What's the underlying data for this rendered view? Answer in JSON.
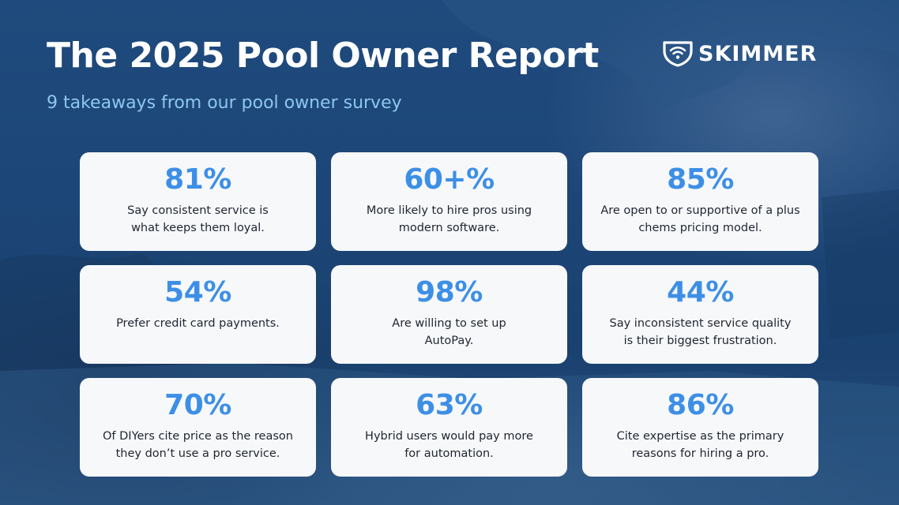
{
  "header": {
    "title": "The 2025 Pool Owner Report",
    "subtitle": "9 takeaways from our pool owner survey"
  },
  "logo": {
    "text": "SKIMMER",
    "icon": "skimmer-wifi-shield-icon"
  },
  "colors": {
    "background": "#1c4677",
    "subtitle": "#8ec7ee",
    "stat": "#3d8fe6",
    "card": "#f7f8fa",
    "card_text": "#1f2530"
  },
  "cards": [
    {
      "stat": "81%",
      "lines": [
        "Say consistent service is",
        "what keeps them loyal."
      ]
    },
    {
      "stat": "60+%",
      "lines": [
        "More likely to hire pros using",
        "modern software."
      ]
    },
    {
      "stat": "85%",
      "lines": [
        "Are open to or supportive of a plus",
        "chems pricing model."
      ]
    },
    {
      "stat": "54%",
      "lines": [
        "Prefer credit card payments.",
        ""
      ]
    },
    {
      "stat": "98%",
      "lines": [
        "Are willing to set up",
        "AutoPay."
      ]
    },
    {
      "stat": "44%",
      "lines": [
        "Say inconsistent service quality",
        "is their biggest frustration."
      ]
    },
    {
      "stat": "70%",
      "lines": [
        "Of DIYers cite price as the reason",
        "they don’t use a pro service."
      ]
    },
    {
      "stat": "63%",
      "lines": [
        "Hybrid users would pay more",
        "for automation."
      ]
    },
    {
      "stat": "86%",
      "lines": [
        "Cite expertise as the primary",
        "reasons for hiring a pro."
      ]
    }
  ]
}
